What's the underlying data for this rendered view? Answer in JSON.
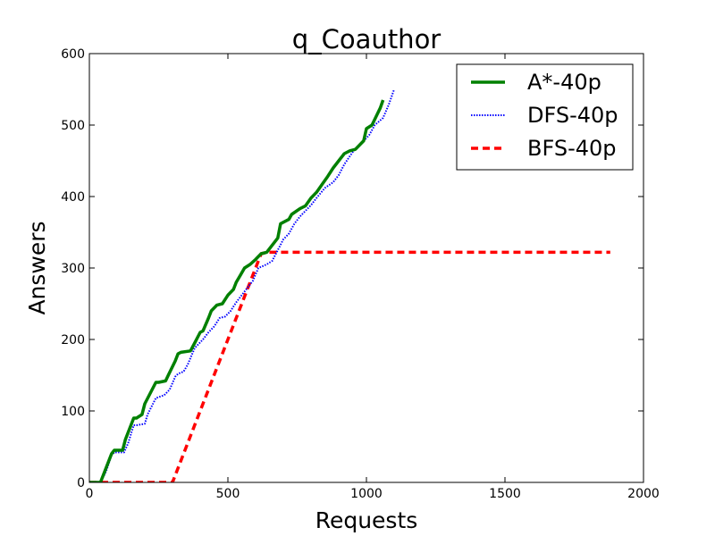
{
  "chart_data": {
    "type": "line",
    "title": "q_Coauthor",
    "xlabel": "Requests",
    "ylabel": "Answers",
    "xlim": [
      0,
      2000
    ],
    "ylim": [
      0,
      600
    ],
    "xticks": [
      "0",
      "500",
      "1000",
      "1500",
      "2000"
    ],
    "yticks": [
      "0",
      "100",
      "200",
      "300",
      "400",
      "500",
      "600"
    ],
    "grid": false,
    "legend_position": "top-right",
    "series": [
      {
        "name": "A*-40p",
        "color": "#008000",
        "style": "solid",
        "x": [
          0,
          40,
          60,
          80,
          90,
          120,
          130,
          160,
          170,
          190,
          200,
          240,
          250,
          275,
          285,
          310,
          320,
          330,
          365,
          380,
          400,
          410,
          430,
          440,
          460,
          480,
          500,
          520,
          530,
          545,
          560,
          580,
          600,
          620,
          640,
          680,
          690,
          720,
          730,
          760,
          780,
          800,
          820,
          840,
          860,
          880,
          900,
          920,
          940,
          960,
          990,
          1000,
          1020,
          1030,
          1050,
          1060
        ],
        "y": [
          0,
          0,
          20,
          40,
          45,
          45,
          60,
          90,
          90,
          95,
          110,
          140,
          140,
          142,
          150,
          170,
          180,
          182,
          184,
          195,
          210,
          212,
          230,
          240,
          248,
          250,
          262,
          270,
          280,
          290,
          300,
          305,
          312,
          320,
          322,
          342,
          362,
          368,
          375,
          383,
          387,
          398,
          406,
          417,
          428,
          440,
          450,
          460,
          464,
          466,
          478,
          495,
          500,
          508,
          524,
          535
        ]
      },
      {
        "name": "DFS-40p",
        "color": "#0000ff",
        "style": "dotted",
        "x": [
          0,
          40,
          60,
          80,
          90,
          125,
          140,
          160,
          170,
          200,
          210,
          240,
          270,
          290,
          310,
          320,
          340,
          355,
          380,
          390,
          410,
          430,
          450,
          470,
          490,
          510,
          530,
          550,
          570,
          590,
          610,
          640,
          660,
          680,
          700,
          720,
          740,
          760,
          780,
          800,
          820,
          850,
          880,
          900,
          920,
          950,
          970,
          990,
          1010,
          1030,
          1060,
          1080,
          1100
        ],
        "y": [
          0,
          0,
          15,
          38,
          42,
          42,
          55,
          80,
          80,
          82,
          95,
          118,
          122,
          130,
          148,
          152,
          155,
          165,
          188,
          192,
          200,
          210,
          218,
          230,
          232,
          240,
          252,
          262,
          272,
          282,
          300,
          305,
          310,
          325,
          340,
          348,
          362,
          372,
          380,
          388,
          398,
          412,
          420,
          430,
          445,
          462,
          470,
          478,
          486,
          500,
          510,
          528,
          550
        ]
      },
      {
        "name": "BFS-40p",
        "color": "#ff0000",
        "style": "dashed",
        "x": [
          0,
          300,
          620,
          640,
          1880
        ],
        "y": [
          0,
          0,
          320,
          322,
          322
        ]
      }
    ]
  }
}
